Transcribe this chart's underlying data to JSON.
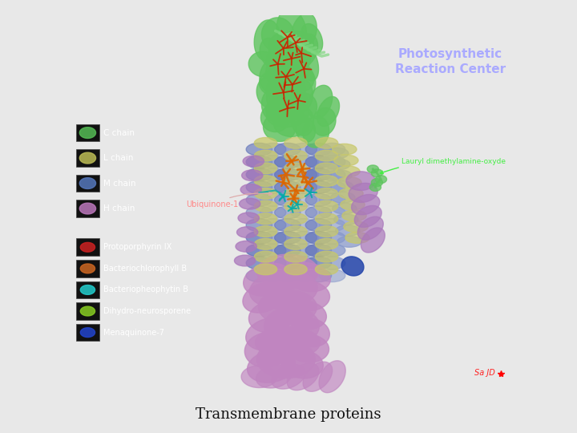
{
  "title": "Transmembrane proteins",
  "title_fontsize": 13,
  "title_color": "#111111",
  "background_color": "#e8e8e8",
  "image_bg": "#050505",
  "protein_title": "Photosynthetic\nReaction Center",
  "protein_title_color": "#aaaaff",
  "protein_title_fontsize": 11,
  "label_ubiquinone": "Ubiquinone-1",
  "label_ubiquinone_color": "#ff8888",
  "label_ubiquinone_arrow_color": "#ddaaaa",
  "label_lauryl": "Lauryl dimethylamine-oxyde",
  "label_lauryl_color": "#44ee44",
  "label_lauryl_arrow_color": "#44ee44",
  "green": "#5ec45e",
  "green2": "#7fd67f",
  "yellow": "#c8c86a",
  "blue": "#6677bb",
  "blue2": "#8899cc",
  "purple": "#aa77bb",
  "pink": "#c085c0",
  "orange": "#dd6600",
  "teal": "#00aaaa",
  "red_mol": "#cc2200",
  "legend_chains": [
    {
      "label": "C chain",
      "color": "#55bb55"
    },
    {
      "label": "L chain",
      "color": "#bbbb55"
    },
    {
      "label": "M chain",
      "color": "#5577bb"
    },
    {
      "label": "H chain",
      "color": "#bb77bb"
    }
  ],
  "legend_molecules": [
    {
      "label": "Protoporphyrin IX",
      "color": "#cc2222"
    },
    {
      "label": "Bacteriochlorophyll B",
      "color": "#cc6622"
    },
    {
      "label": "Bacteriopheophytin B",
      "color": "#22cccc"
    },
    {
      "label": "Dihydro-neurosporene",
      "color": "#88cc22"
    },
    {
      "label": "Menaquinone-7",
      "color": "#2244cc"
    }
  ],
  "fig_width": 7.2,
  "fig_height": 5.4,
  "dpi": 100
}
